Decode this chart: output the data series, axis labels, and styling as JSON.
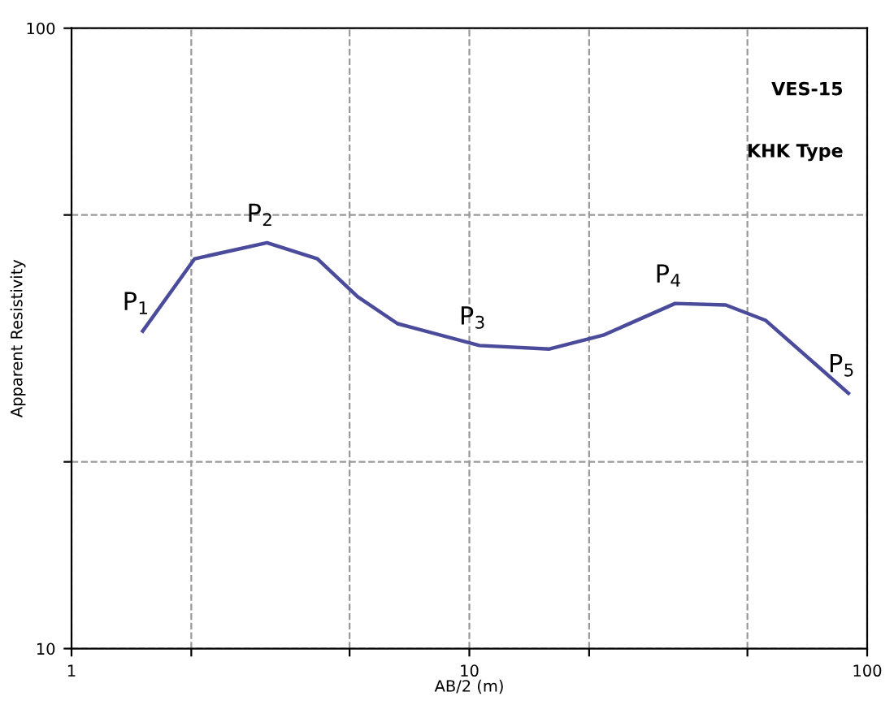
{
  "chart_data": {
    "type": "line",
    "xlabel": "AB/2 (m)",
    "ylabel": "Apparent Resistivity",
    "log": "xy",
    "grid": true,
    "line_style": "solid",
    "marker": "none",
    "xlim": [
      1,
      100
    ],
    "xticks": [
      1,
      {
        "value": 2,
        "label": null
      },
      {
        "value": 5,
        "label": null
      },
      10,
      {
        "value": 20,
        "label": null
      },
      {
        "value": 50,
        "label": null
      },
      100
    ],
    "ylim": [
      10,
      100
    ],
    "yticks": [
      10,
      {
        "value": 20,
        "label": null
      },
      {
        "value": 50,
        "label": null
      },
      100
    ],
    "x": [
      1.51,
      2.04,
      3.1,
      4.15,
      5.24,
      6.6,
      10.6,
      15.9,
      21.7,
      32.9,
      44.1,
      55.6,
      89.7
    ],
    "series": [
      {
        "color": "#4b4b9b",
        "values": [
          32.5,
          42.5,
          45.1,
          42.5,
          36.9,
          33.4,
          30.8,
          30.4,
          32.0,
          36.0,
          35.8,
          33.8,
          25.8
        ]
      }
    ],
    "annotations": [
      {
        "text": "P$_{1}$",
        "x": 1.51,
        "y": 32.5
      },
      {
        "text": "P$_{2}$",
        "x": 3.1,
        "y": 45.1
      },
      {
        "text": "P$_{3}$",
        "x": 10.6,
        "y": 30.8
      },
      {
        "text": "P$_{4}$",
        "x": 32.9,
        "y": 36.0
      },
      {
        "text": "P$_{5}$",
        "x": 89.7,
        "y": 25.8
      },
      "VES-15",
      "KHK Type"
    ]
  }
}
